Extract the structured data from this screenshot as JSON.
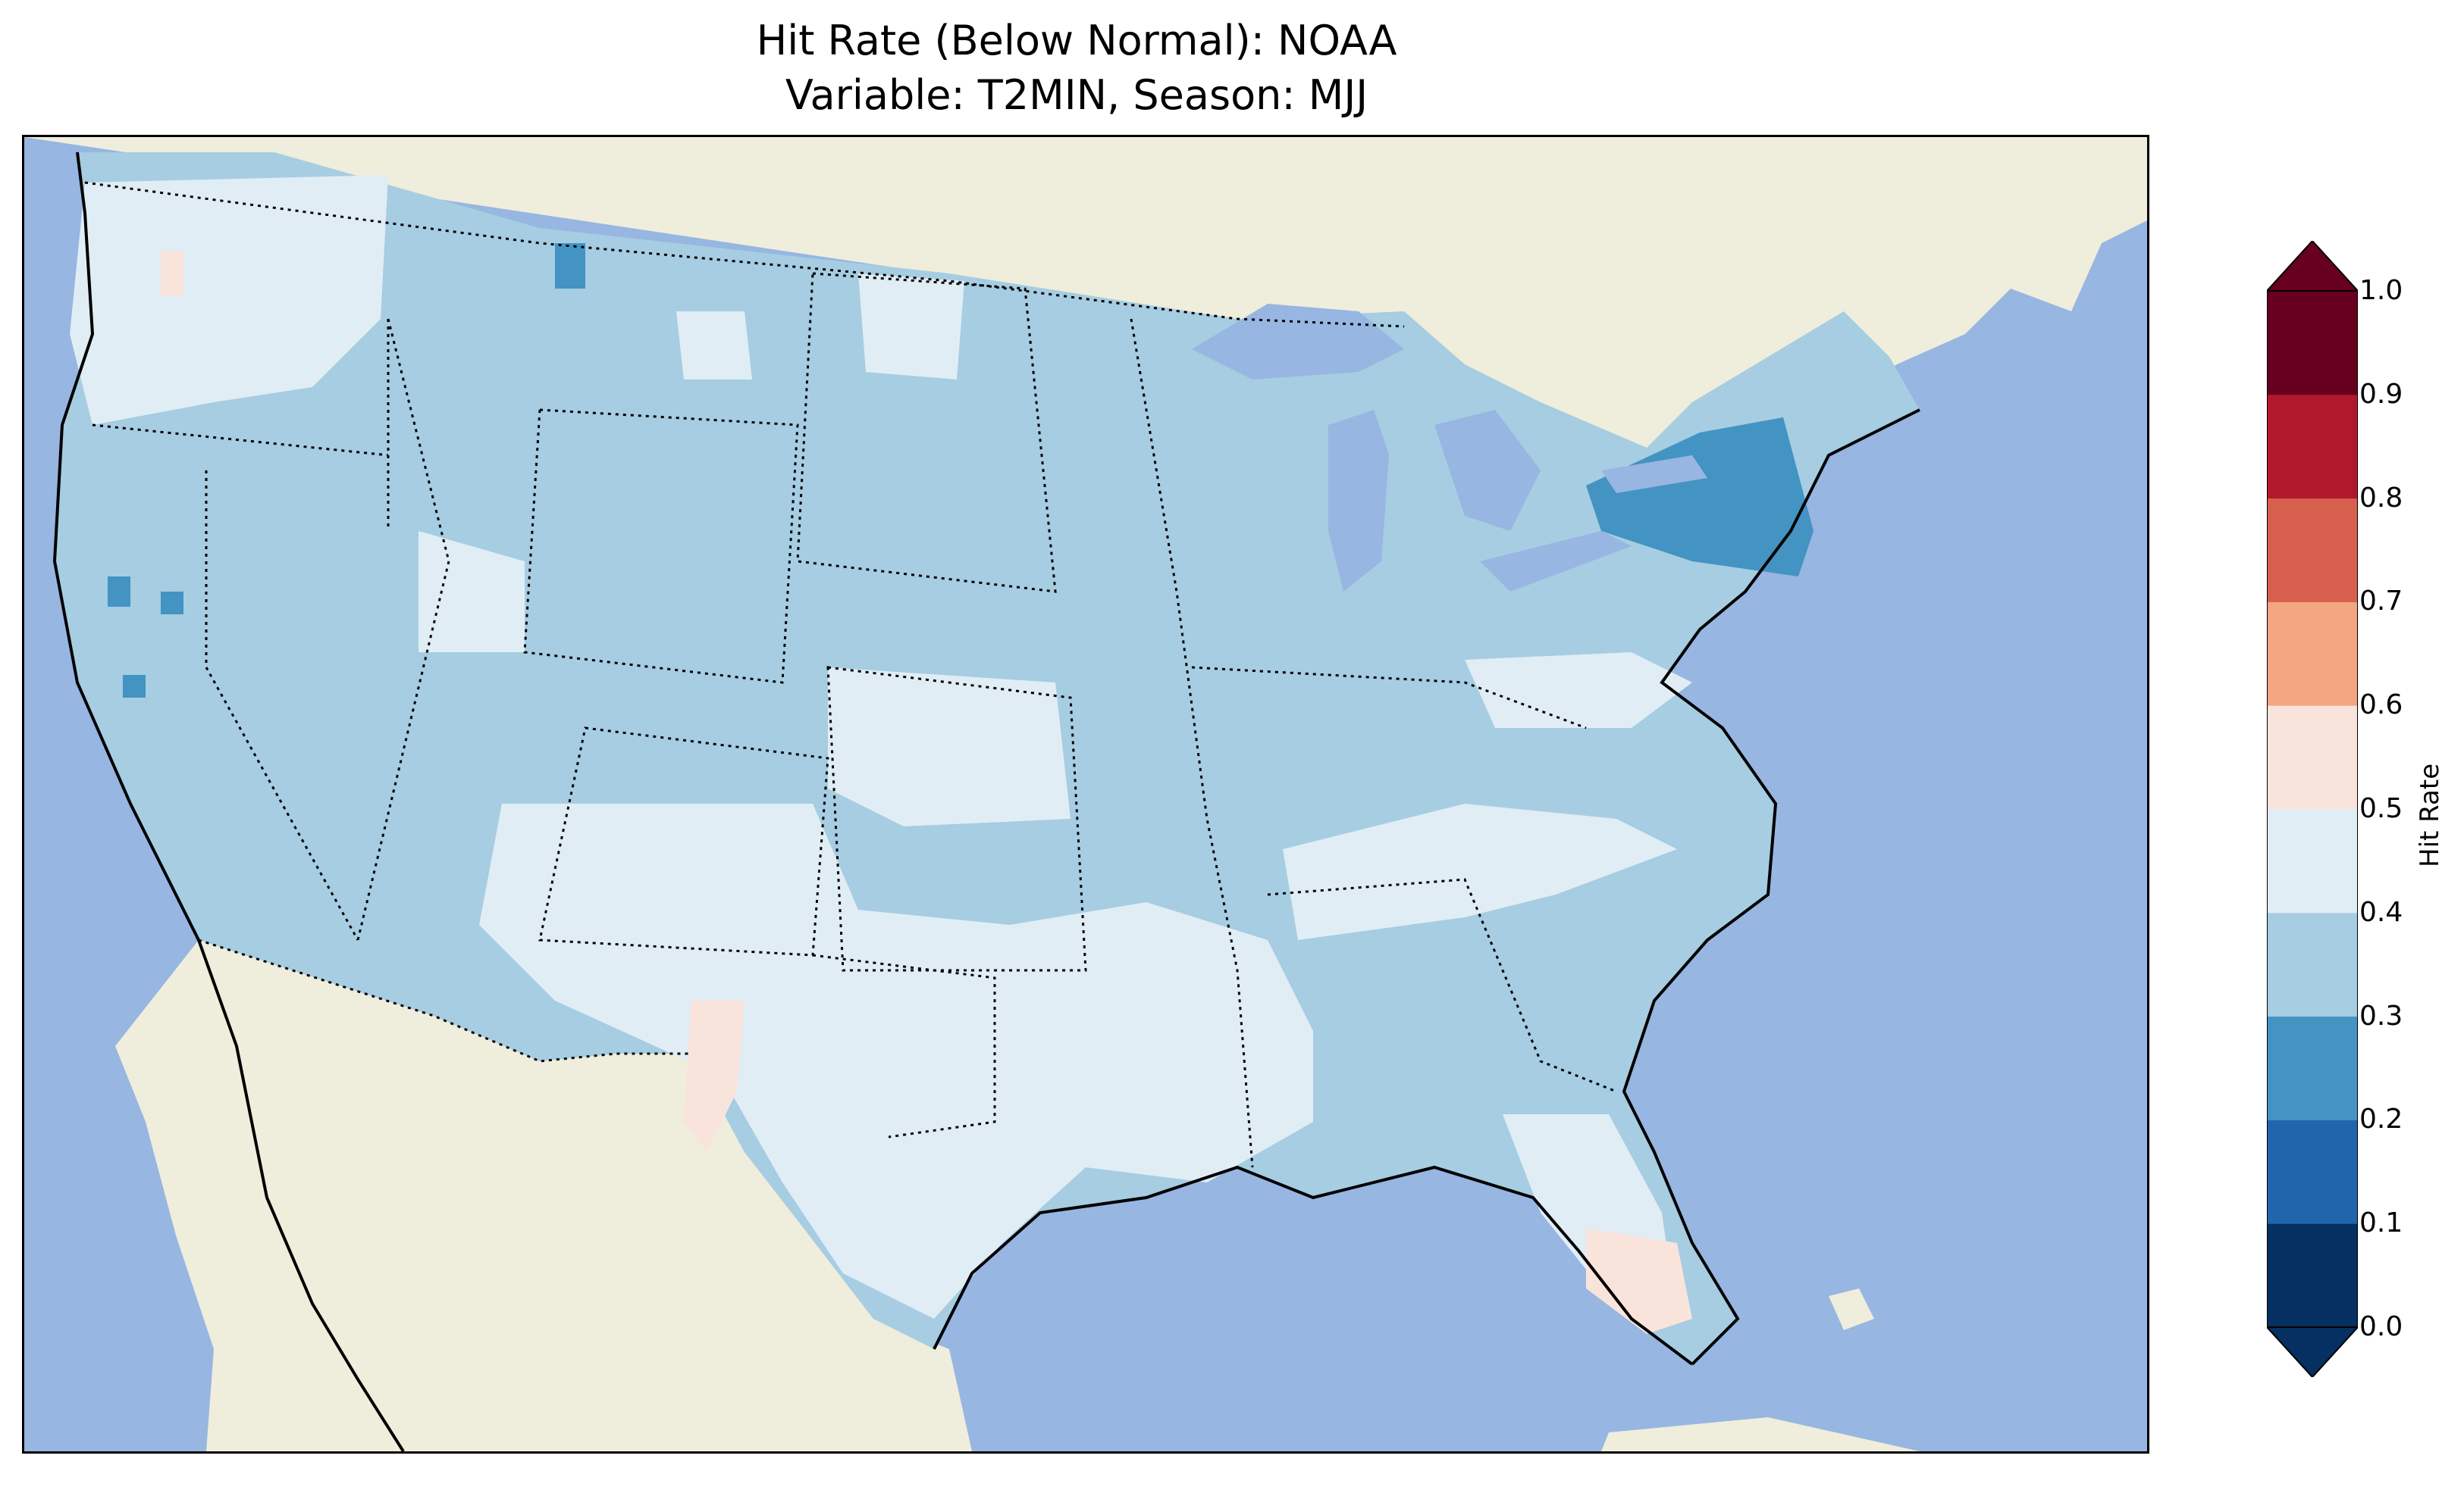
{
  "figure": {
    "title_line1": "Hit Rate (Below Normal): NOAA",
    "title_line2": "Variable: T2MIN, Season: MJJ"
  },
  "colorbar": {
    "label": "Hit Rate",
    "ticks": [
      "0.0",
      "0.1",
      "0.2",
      "0.3",
      "0.4",
      "0.5",
      "0.6",
      "0.7",
      "0.8",
      "0.9",
      "1.0"
    ],
    "colors": [
      "#053061",
      "#2166ac",
      "#4393c3",
      "#a6cde2",
      "#e1edf5",
      "#f9e4dc",
      "#f4a582",
      "#d6604d",
      "#b2182b",
      "#67001f"
    ],
    "extend": "both"
  },
  "map_colors": {
    "ocean": "#97b6e1",
    "land": "#efeddc",
    "lakes": "#97b6e1",
    "class_0.2_0.3": "#4393c3",
    "class_0.3_0.4": "#a6cde2",
    "class_0.4_0.5": "#e1edf5",
    "class_0.5_0.6": "#f9e4dc"
  }
}
